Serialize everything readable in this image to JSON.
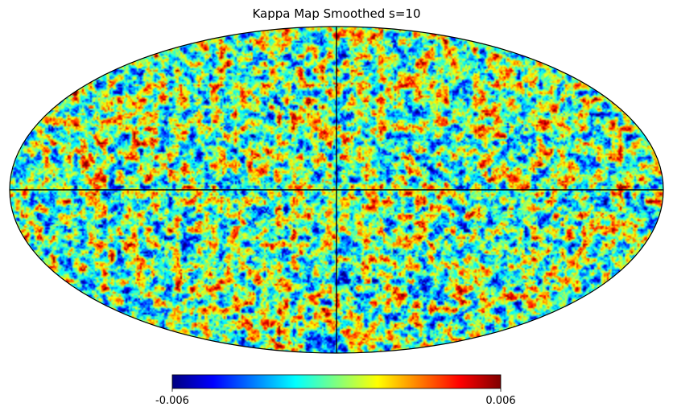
{
  "chart_data": {
    "type": "heatmap",
    "projection": "mollweide",
    "title": "Kappa Map Smoothed s=10",
    "colormap": "jet",
    "colormap_stops": [
      "#00007f",
      "#0000ff",
      "#007fff",
      "#00ffff",
      "#7fff7f",
      "#ffff00",
      "#ff7f00",
      "#ff0000",
      "#7f0000"
    ],
    "value_range": [
      -0.006,
      0.006
    ],
    "colorbar": {
      "orientation": "horizontal",
      "placement": "bottom",
      "min_label": "-0.006",
      "max_label": "0.006"
    },
    "graticule": {
      "central_meridian": true,
      "equator": true
    },
    "grid": false
  }
}
